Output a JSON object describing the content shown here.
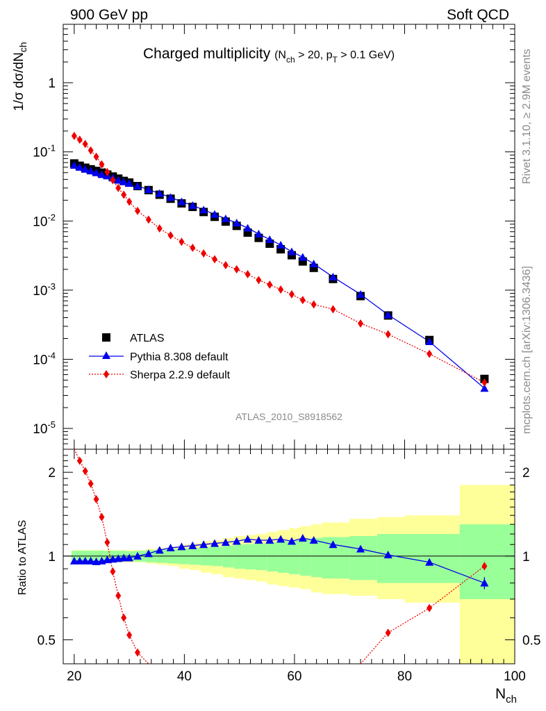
{
  "header": {
    "left": "900 GeV pp",
    "right": "Soft QCD"
  },
  "title": {
    "main": "Charged multiplicity",
    "cut_open": "(N",
    "cut_sub1": "ch",
    "cut_mid": " > 20, p",
    "cut_sub2": "T",
    "cut_close": " > 0.1 GeV)"
  },
  "side_labels": {
    "rivet": "Rivet 3.1.10, ≥ 2.9M events",
    "mcplots": "mcplots.cern.ch [arXiv:1306.3436]"
  },
  "analysis_id": "ATLAS_2010_S8918562",
  "axes": {
    "y_main_label": "1/σ dσ/dN",
    "y_main_sub": "ch",
    "y_ratio_label": "Ratio to ATLAS",
    "x_label": "N",
    "x_sub": "ch"
  },
  "legend": {
    "atlas": "ATLAS",
    "pythia": "Pythia 8.308 default",
    "sherpa": "Sherpa 2.2.9 default"
  },
  "colors": {
    "pythia": "#0000ee",
    "sherpa": "#ee0000",
    "atlas": "#000000",
    "band_inner": "#99ff99",
    "band_outer": "#ffff99"
  },
  "chart_data": [
    {
      "type": "scatter",
      "panel": "main",
      "xlim": [
        18,
        100
      ],
      "ylim": [
        5e-06,
        7
      ],
      "log_y": true,
      "y_ticks": [
        "10^-5",
        "10^-4",
        "10^-3",
        "10^-2",
        "10^-1",
        "1"
      ],
      "x_ticks": [
        20,
        40,
        60,
        80,
        100
      ],
      "series": [
        {
          "name": "ATLAS",
          "x": [
            20,
            21,
            22,
            23,
            24,
            25,
            26,
            27,
            28,
            29,
            30,
            31.5,
            33.5,
            35.5,
            37.5,
            39.5,
            41.5,
            43.5,
            45.5,
            47.5,
            49.5,
            51.5,
            53.5,
            55.5,
            57.5,
            59.5,
            61.5,
            63.5,
            67,
            72,
            77,
            84.5,
            94.5
          ],
          "values": [
            0.068,
            0.063,
            0.059,
            0.056,
            0.053,
            0.05,
            0.047,
            0.044,
            0.041,
            0.038,
            0.036,
            0.032,
            0.028,
            0.024,
            0.021,
            0.018,
            0.016,
            0.0135,
            0.0115,
            0.0098,
            0.0085,
            0.0068,
            0.0057,
            0.0047,
            0.0039,
            0.0032,
            0.0026,
            0.0021,
            0.00145,
            0.00082,
            0.00043,
            0.00019,
            5.2e-05
          ]
        },
        {
          "name": "Pythia 8.308 default",
          "x": [
            20,
            21,
            22,
            23,
            24,
            25,
            26,
            27,
            28,
            29,
            30,
            31.5,
            33.5,
            35.5,
            37.5,
            39.5,
            41.5,
            43.5,
            45.5,
            47.5,
            49.5,
            51.5,
            53.5,
            55.5,
            57.5,
            59.5,
            61.5,
            63.5,
            67,
            72,
            77,
            84.5,
            94.5
          ],
          "values": [
            0.064,
            0.06,
            0.056,
            0.053,
            0.05,
            0.047,
            0.045,
            0.042,
            0.039,
            0.037,
            0.035,
            0.032,
            0.0285,
            0.025,
            0.022,
            0.019,
            0.0168,
            0.0145,
            0.0125,
            0.0108,
            0.0094,
            0.0079,
            0.0065,
            0.0054,
            0.0045,
            0.0036,
            0.003,
            0.0024,
            0.00155,
            0.00087,
            0.00044,
            0.00018,
            3.8e-05
          ]
        },
        {
          "name": "Sherpa 2.2.9 default",
          "x": [
            20,
            21,
            22,
            23,
            24,
            25,
            26,
            27,
            28,
            29,
            30,
            31.5,
            33.5,
            35.5,
            37.5,
            39.5,
            41.5,
            43.5,
            45.5,
            47.5,
            49.5,
            51.5,
            53.5,
            55.5,
            57.5,
            59.5,
            61.5,
            63.5,
            67,
            72,
            77,
            84.5,
            94.5
          ],
          "values": [
            0.17,
            0.15,
            0.13,
            0.105,
            0.085,
            0.066,
            0.051,
            0.039,
            0.03,
            0.024,
            0.019,
            0.014,
            0.0105,
            0.0078,
            0.0062,
            0.005,
            0.0041,
            0.0034,
            0.0028,
            0.0023,
            0.002,
            0.0017,
            0.0014,
            0.0012,
            0.00102,
            0.00087,
            0.00072,
            0.00062,
            0.00053,
            0.00033,
            0.00023,
            0.00012,
            4.6e-05
          ]
        }
      ]
    },
    {
      "type": "line",
      "panel": "ratio",
      "xlim": [
        18,
        100
      ],
      "ylim": [
        0.41,
        2.42
      ],
      "log_y": true,
      "y_ticks": [
        0.5,
        1,
        2
      ],
      "x_ticks": [
        20,
        40,
        60,
        80,
        100
      ],
      "ylabel": "Ratio to ATLAS",
      "xlabel": "Nch",
      "bands": {
        "edges": [
          19.5,
          29.5,
          31,
          33,
          35,
          37,
          39,
          41,
          43,
          45,
          47,
          49,
          51,
          53,
          55,
          57,
          59,
          61,
          63,
          65,
          70,
          75,
          80,
          90,
          100
        ],
        "inner": [
          0.045,
          0.04,
          0.045,
          0.05,
          0.055,
          0.06,
          0.065,
          0.07,
          0.075,
          0.08,
          0.09,
          0.1,
          0.105,
          0.11,
          0.12,
          0.13,
          0.14,
          0.15,
          0.16,
          0.17,
          0.18,
          0.2,
          0.2,
          0.3
        ],
        "outer_high": [
          1.05,
          1.05,
          1.05,
          1.06,
          1.07,
          1.08,
          1.1,
          1.11,
          1.13,
          1.14,
          1.16,
          1.18,
          1.19,
          1.2,
          1.22,
          1.24,
          1.26,
          1.28,
          1.3,
          1.32,
          1.36,
          1.38,
          1.4,
          1.8
        ],
        "outer_low": [
          0.95,
          0.95,
          0.95,
          0.94,
          0.93,
          0.92,
          0.9,
          0.89,
          0.87,
          0.86,
          0.84,
          0.83,
          0.82,
          0.81,
          0.79,
          0.78,
          0.77,
          0.76,
          0.74,
          0.73,
          0.72,
          0.7,
          0.68,
          0.3
        ]
      },
      "series": [
        {
          "name": "Pythia 8.308 default",
          "x": [
            20,
            21,
            22,
            23,
            24,
            25,
            26,
            27,
            28,
            29,
            30,
            31.5,
            33.5,
            35.5,
            37.5,
            39.5,
            41.5,
            43.5,
            45.5,
            47.5,
            49.5,
            51.5,
            53.5,
            55.5,
            57.5,
            59.5,
            61.5,
            63.5,
            67,
            72,
            77,
            84.5,
            94.5
          ],
          "values": [
            0.96,
            0.96,
            0.96,
            0.96,
            0.955,
            0.96,
            0.97,
            0.975,
            0.98,
            0.985,
            0.985,
            1.0,
            1.02,
            1.05,
            1.07,
            1.08,
            1.09,
            1.1,
            1.11,
            1.12,
            1.13,
            1.15,
            1.14,
            1.14,
            1.15,
            1.13,
            1.16,
            1.14,
            1.1,
            1.06,
            1.01,
            0.95,
            0.8
          ]
        },
        {
          "name": "Sherpa 2.2.9 default",
          "x": [
            20,
            21,
            22,
            23,
            24,
            25,
            26,
            27,
            28,
            29,
            30,
            31.5,
            33.5,
            72,
            77,
            84.5,
            94.5
          ],
          "values": [
            2.43,
            2.2,
            2.02,
            1.82,
            1.6,
            1.38,
            1.12,
            0.88,
            0.72,
            0.6,
            0.52,
            0.45,
            0.4,
            0.39,
            0.53,
            0.65,
            0.92
          ]
        }
      ]
    }
  ]
}
